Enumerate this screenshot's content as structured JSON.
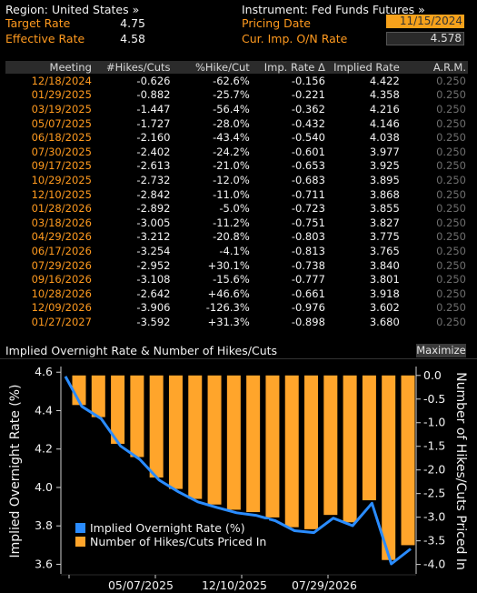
{
  "header": {
    "region_label": "Region: United States »",
    "instrument_label": "Instrument: Fed Funds Futures »",
    "target_rate_label": "Target Rate",
    "target_rate_value": "4.75",
    "effective_rate_label": "Effective Rate",
    "effective_rate_value": "4.58",
    "pricing_date_label": "Pricing Date",
    "pricing_date_value": "11/15/2024",
    "cur_imp_label": "Cur. Imp. O/N Rate",
    "cur_imp_value": "4.578"
  },
  "table": {
    "columns": [
      "Meeting",
      "#Hikes/Cuts",
      "%Hike/Cut",
      "Imp. Rate Δ",
      "Implied Rate",
      "A.R.M."
    ],
    "rows": [
      [
        "12/18/2024",
        "-0.626",
        "-62.6%",
        "-0.156",
        "4.422",
        "0.250"
      ],
      [
        "01/29/2025",
        "-0.882",
        "-25.7%",
        "-0.221",
        "4.358",
        "0.250"
      ],
      [
        "03/19/2025",
        "-1.447",
        "-56.4%",
        "-0.362",
        "4.216",
        "0.250"
      ],
      [
        "05/07/2025",
        "-1.727",
        "-28.0%",
        "-0.432",
        "4.146",
        "0.250"
      ],
      [
        "06/18/2025",
        "-2.160",
        "-43.4%",
        "-0.540",
        "4.038",
        "0.250"
      ],
      [
        "07/30/2025",
        "-2.402",
        "-24.2%",
        "-0.601",
        "3.977",
        "0.250"
      ],
      [
        "09/17/2025",
        "-2.613",
        "-21.0%",
        "-0.653",
        "3.925",
        "0.250"
      ],
      [
        "10/29/2025",
        "-2.732",
        "-12.0%",
        "-0.683",
        "3.895",
        "0.250"
      ],
      [
        "12/10/2025",
        "-2.842",
        "-11.0%",
        "-0.711",
        "3.868",
        "0.250"
      ],
      [
        "01/28/2026",
        "-2.892",
        "-5.0%",
        "-0.723",
        "3.855",
        "0.250"
      ],
      [
        "03/18/2026",
        "-3.005",
        "-11.2%",
        "-0.751",
        "3.827",
        "0.250"
      ],
      [
        "04/29/2026",
        "-3.212",
        "-20.8%",
        "-0.803",
        "3.775",
        "0.250"
      ],
      [
        "06/17/2026",
        "-3.254",
        "-4.1%",
        "-0.813",
        "3.765",
        "0.250"
      ],
      [
        "07/29/2026",
        "-2.952",
        "+30.1%",
        "-0.738",
        "3.840",
        "0.250"
      ],
      [
        "09/16/2026",
        "-3.108",
        "-15.6%",
        "-0.777",
        "3.801",
        "0.250"
      ],
      [
        "10/28/2026",
        "-2.642",
        "+46.6%",
        "-0.661",
        "3.918",
        "0.250"
      ],
      [
        "12/09/2026",
        "-3.906",
        "-126.3%",
        "-0.976",
        "3.602",
        "0.250"
      ],
      [
        "01/27/2027",
        "-3.592",
        "+31.3%",
        "-0.898",
        "3.680",
        "0.250"
      ]
    ]
  },
  "chart_panel": {
    "title": "Implied Overnight Rate & Number of Hikes/Cuts",
    "maximize_label": "Maximize"
  },
  "chart_data": {
    "type": "line",
    "x_tick_labels": [
      "05/07/2025",
      "12/10/2025",
      "07/29/2026"
    ],
    "left_axis": {
      "label": "Implied Overnight Rate (%)",
      "ylim": [
        3.55,
        4.62
      ],
      "ticks": [
        "4.6",
        "4.4",
        "4.2",
        "4.0",
        "3.8",
        "3.6"
      ]
    },
    "right_axis": {
      "label": "Number of Hikes/Cuts Priced In",
      "ylim": [
        -4.2,
        0.15
      ],
      "ticks": [
        "0.0",
        "-0.5",
        "-1.0",
        "-1.5",
        "-2.0",
        "-2.5",
        "-3.0",
        "-3.5",
        "-4.0"
      ]
    },
    "series": [
      {
        "name": "Implied Overnight Rate (%)",
        "kind": "line",
        "axis": "left",
        "color": "#2a8cff",
        "values": [
          4.578,
          4.422,
          4.358,
          4.216,
          4.146,
          4.038,
          3.977,
          3.925,
          3.895,
          3.868,
          3.855,
          3.827,
          3.775,
          3.765,
          3.84,
          3.801,
          3.918,
          3.602,
          3.68
        ]
      },
      {
        "name": "Number of Hikes/Cuts Priced In",
        "kind": "bar",
        "axis": "right",
        "color": "#ffa52b",
        "values": [
          -0.626,
          -0.882,
          -1.447,
          -1.727,
          -2.16,
          -2.402,
          -2.613,
          -2.732,
          -2.842,
          -2.892,
          -3.005,
          -3.212,
          -3.254,
          -2.952,
          -3.108,
          -2.642,
          -3.906,
          -3.592
        ]
      }
    ],
    "legend": {
      "placement": "bottom-left"
    },
    "grid": false
  }
}
